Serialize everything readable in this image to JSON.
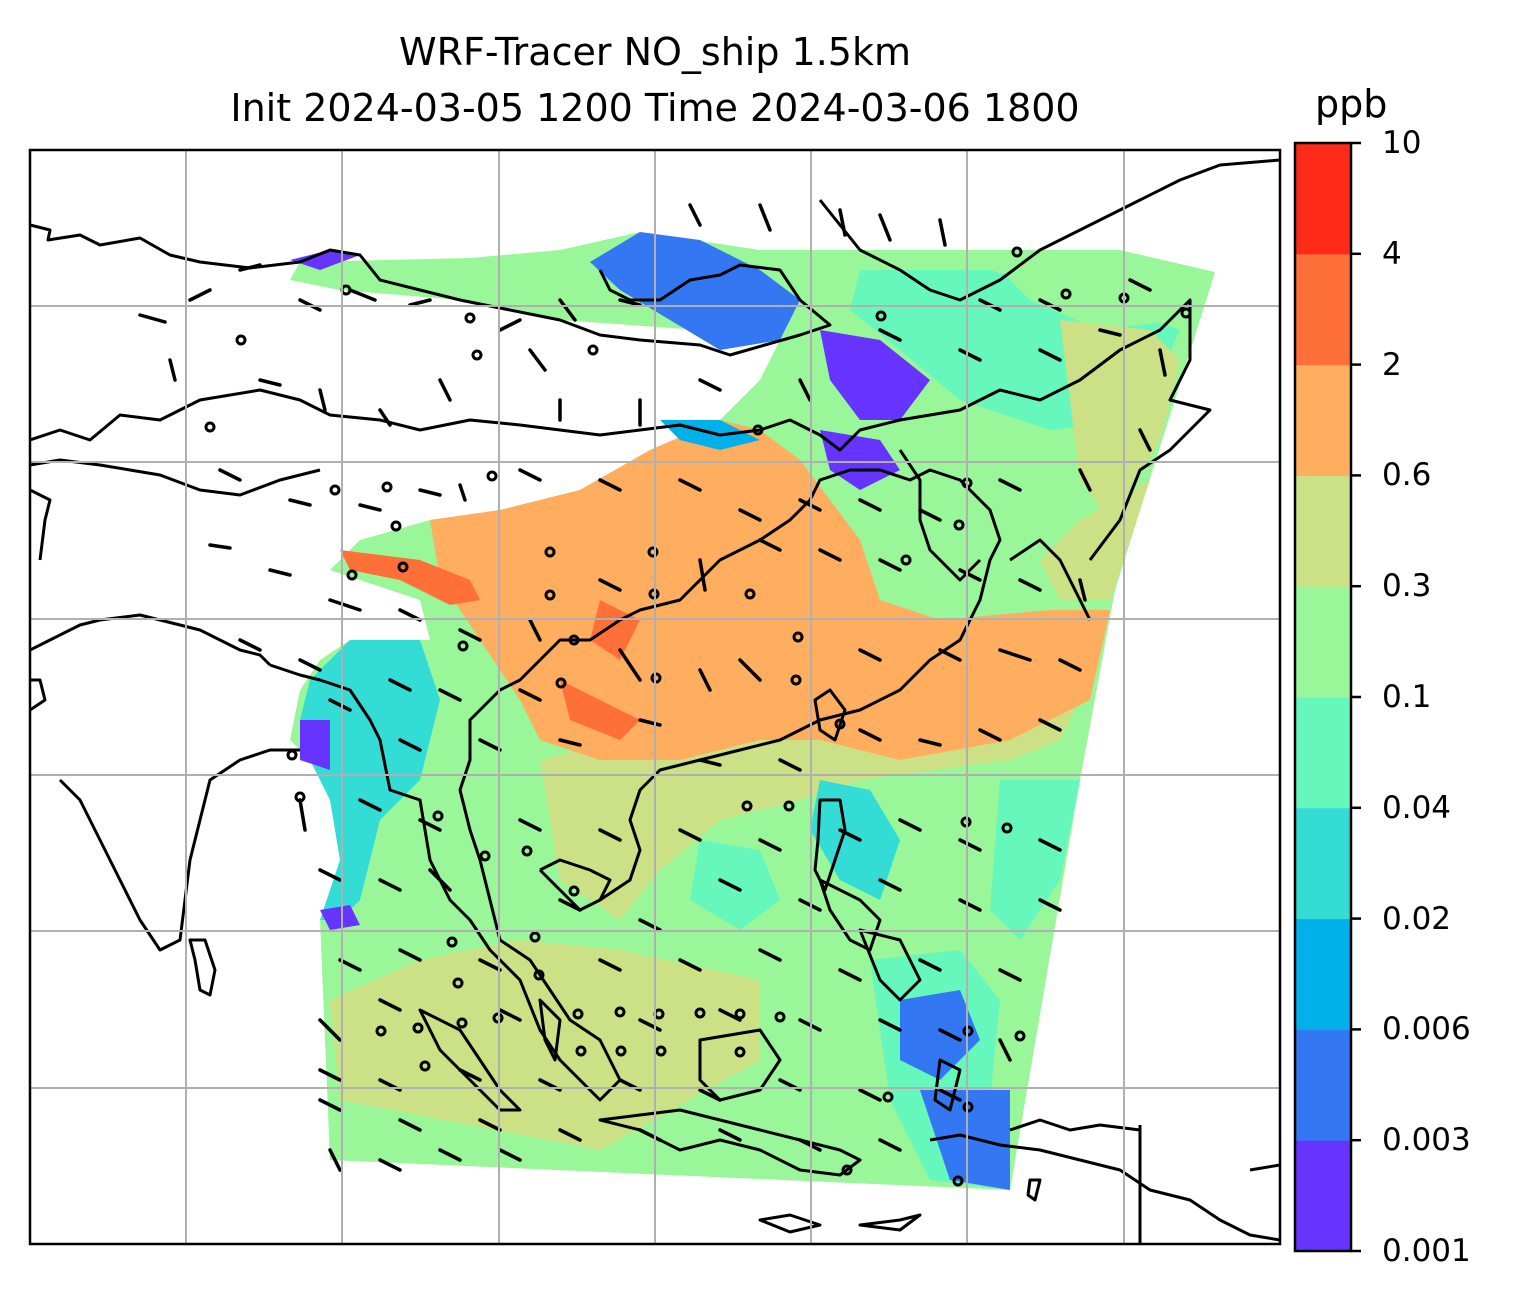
{
  "title": {
    "line1": "WRF-Tracer NO_ship 1.5km",
    "line2": "Init 2024-03-05 1200 Time 2024-03-06 1800"
  },
  "colorbar": {
    "unit": "ppb",
    "ticks": [
      "0.001",
      "0.003",
      "0.006",
      "0.02",
      "0.04",
      "0.1",
      "0.3",
      "0.6",
      "2",
      "4",
      "10"
    ],
    "colors": [
      "#6633ff",
      "#3377f2",
      "#00b0eb",
      "#33dcd4",
      "#66f7bd",
      "#99f799",
      "#cce086",
      "#ffad5e",
      "#ff7038",
      "#ff2a17"
    ]
  },
  "map": {
    "gridlines": true,
    "gridline_color": "#b0b0b0",
    "coastline_color": "#000000",
    "wind_barbs": true
  }
}
